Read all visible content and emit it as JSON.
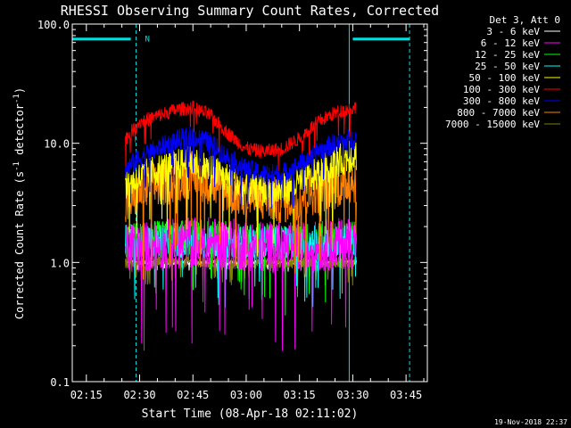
{
  "chart_data": {
    "type": "line",
    "title": "RHESSI Observing Summary Count Rates, Corrected",
    "xlabel": "Start Time (08-Apr-18 02:11:02)",
    "ylabel": "Corrected Count Rate (s⁻¹ detector⁻¹)",
    "ylabel_parts": {
      "main": "Corrected Count Rate (s",
      "sup1": "-1",
      "mid": " detector",
      "sup2": "-1",
      "end": ")"
    },
    "yscale": "log",
    "ylim": [
      0.1,
      100.0
    ],
    "yticks": [
      {
        "value": 100.0,
        "label": "100.0"
      },
      {
        "value": 10.0,
        "label": "10.0"
      },
      {
        "value": 1.0,
        "label": "1.0"
      },
      {
        "value": 0.1,
        "label": "0.1"
      }
    ],
    "xlim": [
      "02:11:02",
      "03:51:00"
    ],
    "xticks": [
      "02:15",
      "02:30",
      "02:45",
      "03:00",
      "03:15",
      "03:30",
      "03:45"
    ],
    "legend_header": "Det 3, Att 0",
    "legend_placement": "right",
    "series": [
      {
        "name": "3 - 6 keV",
        "color": "#ffffff",
        "start": "02:26",
        "end": "03:31",
        "points": [
          [
            "02:26",
            1.0
          ],
          [
            "02:30",
            1.0
          ],
          [
            "02:45",
            1.0
          ],
          [
            "03:00",
            1.0
          ],
          [
            "03:15",
            1.0
          ],
          [
            "03:31",
            1.0
          ]
        ]
      },
      {
        "name": "6 - 12 keV",
        "color": "#ff00ff",
        "start": "02:26",
        "end": "03:31",
        "points": [
          [
            "02:26",
            1.3
          ],
          [
            "02:45",
            1.5
          ],
          [
            "03:00",
            1.4
          ],
          [
            "03:15",
            1.3
          ],
          [
            "03:31",
            1.5
          ]
        ]
      },
      {
        "name": "12 - 25 keV",
        "color": "#00ff00",
        "start": "02:26",
        "end": "03:31",
        "points": [
          [
            "02:26",
            1.5
          ],
          [
            "02:45",
            1.6
          ],
          [
            "03:00",
            1.5
          ],
          [
            "03:15",
            1.5
          ],
          [
            "03:31",
            1.6
          ]
        ]
      },
      {
        "name": "25 - 50 keV",
        "color": "#00ffff",
        "start": "02:26",
        "end": "03:31",
        "points": [
          [
            "02:26",
            1.5
          ],
          [
            "02:45",
            1.5
          ],
          [
            "03:00",
            1.5
          ],
          [
            "03:15",
            1.5
          ],
          [
            "03:31",
            1.5
          ]
        ]
      },
      {
        "name": "50 - 100 keV",
        "color": "#ffff00",
        "start": "02:26",
        "end": "03:31",
        "points": [
          [
            "02:26",
            4.5
          ],
          [
            "02:35",
            6.0
          ],
          [
            "02:45",
            7.0
          ],
          [
            "02:55",
            5.0
          ],
          [
            "03:00",
            4.0
          ],
          [
            "03:10",
            4.0
          ],
          [
            "03:20",
            5.5
          ],
          [
            "03:25",
            7.0
          ],
          [
            "03:31",
            8.0
          ]
        ]
      },
      {
        "name": "100 - 300 keV",
        "color": "#ff0000",
        "start": "02:26",
        "end": "03:31",
        "points": [
          [
            "02:26",
            11.0
          ],
          [
            "02:30",
            15.0
          ],
          [
            "02:35",
            17.0
          ],
          [
            "02:40",
            19.0
          ],
          [
            "02:45",
            20.0
          ],
          [
            "02:50",
            17.0
          ],
          [
            "02:55",
            12.0
          ],
          [
            "03:00",
            9.0
          ],
          [
            "03:05",
            8.5
          ],
          [
            "03:10",
            9.0
          ],
          [
            "03:15",
            11.0
          ],
          [
            "03:20",
            15.0
          ],
          [
            "03:25",
            18.0
          ],
          [
            "03:31",
            20.0
          ]
        ]
      },
      {
        "name": "300 - 800 keV",
        "color": "#0000ff",
        "start": "02:26",
        "end": "03:31",
        "points": [
          [
            "02:26",
            6.0
          ],
          [
            "02:30",
            7.5
          ],
          [
            "02:35",
            9.0
          ],
          [
            "02:40",
            10.5
          ],
          [
            "02:45",
            11.5
          ],
          [
            "02:50",
            10.0
          ],
          [
            "02:55",
            7.5
          ],
          [
            "03:00",
            6.0
          ],
          [
            "03:05",
            5.5
          ],
          [
            "03:10",
            5.5
          ],
          [
            "03:15",
            6.5
          ],
          [
            "03:20",
            8.5
          ],
          [
            "03:25",
            10.0
          ],
          [
            "03:31",
            11.0
          ]
        ]
      },
      {
        "name": "800 - 7000 keV",
        "color": "#ff8000",
        "start": "02:26",
        "end": "03:31",
        "points": [
          [
            "02:26",
            3.0
          ],
          [
            "02:30",
            4.0
          ],
          [
            "02:40",
            5.0
          ],
          [
            "02:45",
            5.5
          ],
          [
            "02:55",
            4.0
          ],
          [
            "03:00",
            3.5
          ],
          [
            "03:10",
            3.3
          ],
          [
            "03:20",
            4.0
          ],
          [
            "03:31",
            5.0
          ]
        ]
      },
      {
        "name": "7000 - 15000 keV",
        "color": "#808000",
        "start": "02:26",
        "end": "03:31",
        "points": [
          [
            "02:26",
            1.0
          ],
          [
            "02:45",
            1.0
          ],
          [
            "03:00",
            1.0
          ],
          [
            "03:15",
            1.0
          ],
          [
            "03:31",
            1.0
          ]
        ]
      }
    ],
    "vertical_lines": [
      {
        "time": "02:11:02",
        "style": "solid",
        "color": "#00e0e0"
      },
      {
        "time": "02:29:00",
        "style": "dashed",
        "color": "#00e0e0"
      },
      {
        "time": "03:29:00",
        "style": "solid",
        "color": "#00e0e0"
      },
      {
        "time": "03:46:00",
        "style": "dashed",
        "color": "#00e0e0"
      }
    ],
    "night_bars": [
      {
        "start": "02:11:02",
        "end": "02:27:30",
        "value": 75
      },
      {
        "start": "03:30:00",
        "end": "03:46:00",
        "value": 75
      }
    ],
    "annotations": [
      {
        "text": "N",
        "time": "02:30:00",
        "value": 78,
        "color": "#00e0e0"
      }
    ]
  },
  "footer": {
    "timestamp": "19-Nov-2018 22:37"
  }
}
